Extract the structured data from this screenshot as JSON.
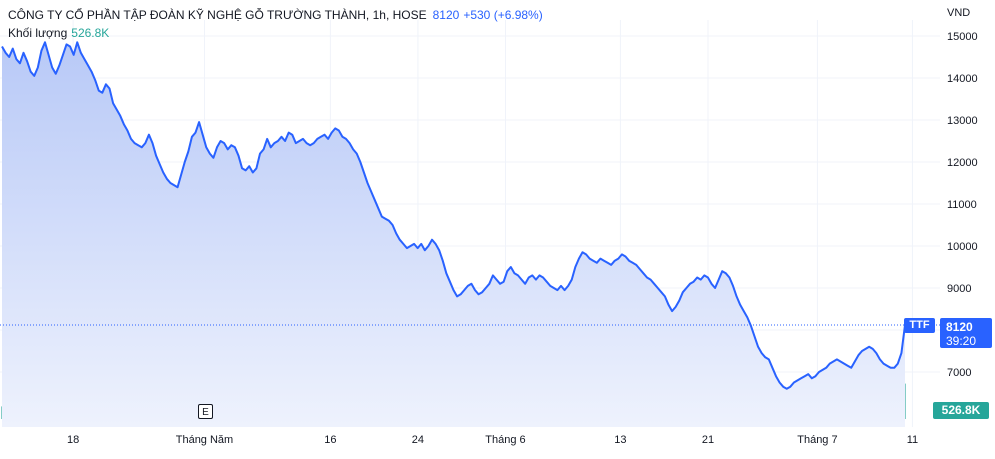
{
  "legend": {
    "name": "CÔNG TY CỔ PHẦN TẬP ĐOÀN KỸ NGHỆ GỖ TRƯỜNG THÀNH, 1h, HOSE",
    "price": "8120",
    "change": "+530 (+6.98%)",
    "volume_label": "Khối lượng",
    "volume_value": "526.8K"
  },
  "currency": "VND",
  "price_tag": {
    "symbol": "TTF",
    "price": "8120",
    "countdown": "39:20"
  },
  "volume_tag": "526.8K",
  "event_marker": "E",
  "colors": {
    "line": "#2962ff",
    "area_top": "#b8c9f7",
    "area_bottom": "#eef2fd",
    "volume_up": "#26a69a",
    "volume_down": "#ef5350",
    "grid": "#f0f3fa",
    "text": "#131722"
  },
  "chart_data": {
    "type": "area",
    "title": "CÔNG TY CỔ PHẦN TẬP ĐOÀN KỸ NGHỆ GỖ TRƯỜNG THÀNH, 1h, HOSE",
    "ylabel": "VND",
    "ylim": [
      5900,
      15500
    ],
    "yticks": [
      7000,
      8000,
      9000,
      10000,
      11000,
      12000,
      13000,
      14000,
      15000
    ],
    "ytick_labels": [
      "7000",
      "",
      "9000",
      "10000",
      "11000",
      "12000",
      "13000",
      "14000",
      "15000"
    ],
    "xticks": [
      {
        "i": 13,
        "label": "18"
      },
      {
        "i": 37,
        "label": "Tháng Năm"
      },
      {
        "i": 60,
        "label": "16"
      },
      {
        "i": 76,
        "label": "24"
      },
      {
        "i": 92,
        "label": "Tháng 6"
      },
      {
        "i": 113,
        "label": "13"
      },
      {
        "i": 129,
        "label": "21"
      },
      {
        "i": 149,
        "label": "Tháng 7"
      },
      {
        "i": 167,
        "label": "11"
      }
    ],
    "last_price": 8120,
    "bars_visible": 166,
    "x_slots": 172,
    "series": [
      {
        "values": [
          14750,
          14600,
          14500,
          14700,
          14450,
          14350,
          14600,
          14400,
          14150,
          14050,
          14250,
          14650,
          14850,
          14550,
          14250,
          14100,
          14300,
          14550,
          14800,
          14750,
          14550,
          14850,
          14600,
          14450,
          14300,
          14150,
          13950,
          13700,
          13650,
          13850,
          13750,
          13400,
          13250,
          13100,
          12900,
          12750,
          12550,
          12450,
          12400,
          12350,
          12450,
          12650,
          12450,
          12150,
          11950,
          11750,
          11600,
          11500,
          11450,
          11400,
          11700,
          12000,
          12250,
          12600,
          12700,
          12950,
          12650,
          12350,
          12200,
          12100,
          12350,
          12500,
          12450,
          12300,
          12400,
          12350,
          12150,
          11850,
          11800,
          11900,
          11750,
          11850,
          12200,
          12300,
          12550,
          12350,
          12450,
          12500,
          12600,
          12500,
          12700,
          12650,
          12450,
          12500,
          12550,
          12450,
          12400,
          12450,
          12550,
          12600,
          12650,
          12550,
          12700,
          12800,
          12750,
          12600,
          12550,
          12450,
          12300,
          12200,
          12000,
          11750,
          11500,
          11300,
          11100,
          10900,
          10700,
          10650,
          10600,
          10500,
          10300,
          10150,
          10050,
          9950,
          10000,
          10050,
          9950,
          10050,
          9900,
          10000,
          10150,
          10050,
          9900,
          9650,
          9350,
          9150,
          8950,
          8800,
          8850,
          8950,
          9050,
          9100,
          8950,
          8850,
          8900,
          9000,
          9100,
          9300,
          9200,
          9100,
          9150,
          9400,
          9500,
          9350,
          9300,
          9200,
          9100,
          9250,
          9300,
          9200,
          9300,
          9250,
          9150,
          9050,
          9000,
          8950,
          9050,
          8950,
          9050,
          9200,
          9500,
          9700,
          9850,
          9800,
          9700,
          9650,
          9600,
          9700,
          9650,
          9600,
          9550,
          9650,
          9700,
          9800,
          9750,
          9650,
          9600,
          9550,
          9450,
          9350,
          9250,
          9200,
          9100,
          9000,
          8900,
          8800,
          8600,
          8450,
          8550,
          8700,
          8900,
          9000,
          9100,
          9150,
          9250,
          9200,
          9300,
          9250,
          9100,
          9000,
          9200,
          9400,
          9350,
          9250,
          9050,
          8800,
          8600,
          8450,
          8300,
          8100,
          7850,
          7600,
          7450,
          7350,
          7300,
          7100,
          6900,
          6750,
          6650,
          6600,
          6650,
          6750,
          6800,
          6850,
          6900,
          6950,
          6850,
          6900,
          7000,
          7050,
          7100,
          7200,
          7250,
          7300,
          7250,
          7200,
          7150,
          7100,
          7250,
          7400,
          7500,
          7550,
          7600,
          7550,
          7450,
          7300,
          7200,
          7150,
          7100,
          7100,
          7200,
          7450,
          8120
        ]
      }
    ],
    "volume": {
      "ylim": [
        0,
        1400
      ],
      "last": 526.8,
      "unit": "K"
    }
  }
}
